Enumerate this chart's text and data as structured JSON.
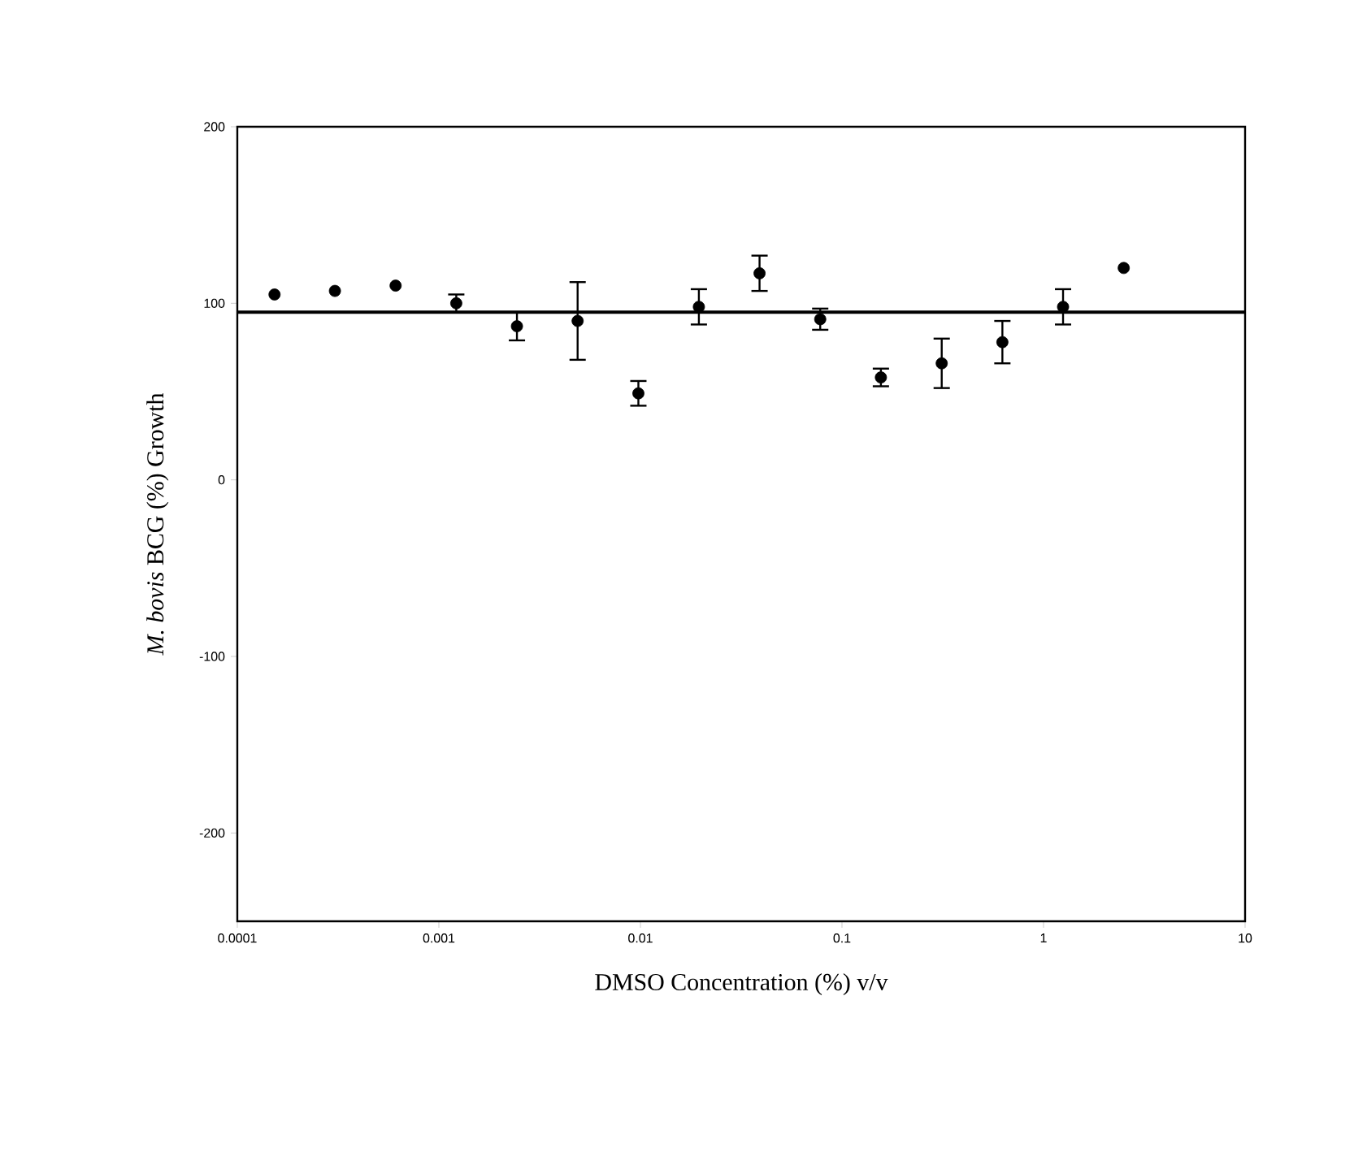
{
  "chart_data": {
    "type": "scatter",
    "xlabel": "DMSO Concentration (%) v/v",
    "ylabel": "*M. bovis* BCG (%) Growth",
    "x": [
      0.000153,
      0.000305,
      0.00061,
      0.00122,
      0.00244,
      0.00488,
      0.00977,
      0.0195,
      0.039,
      0.078,
      0.156,
      0.3125,
      0.625,
      1.25,
      2.5
    ],
    "values": [
      105,
      107,
      110,
      100,
      87,
      90,
      49,
      98,
      117,
      91,
      58,
      66,
      78,
      98,
      120
    ],
    "errors": [
      null,
      null,
      null,
      5,
      8,
      22,
      7,
      10,
      10,
      6,
      5,
      14,
      12,
      10,
      null
    ],
    "color": "#000000",
    "marker": "circle",
    "log": "x",
    "xlim": [
      0.0001,
      10
    ],
    "xticks": [
      {
        "value": 0.0001,
        "label": "0.0001"
      },
      {
        "value": 0.001,
        "label": "0.001"
      },
      {
        "value": 0.01,
        "label": "0.01"
      },
      {
        "value": 0.1,
        "label": "0.1"
      },
      {
        "value": 1,
        "label": "1"
      },
      {
        "value": 10,
        "label": "10"
      }
    ],
    "ylim": [
      -250,
      200
    ],
    "yticks": [
      -200,
      -100,
      0,
      100,
      200
    ],
    "ref_lines": [
      {
        "axis": "y",
        "value": 95,
        "color": "#000000"
      }
    ],
    "grid": false,
    "legend": false
  }
}
